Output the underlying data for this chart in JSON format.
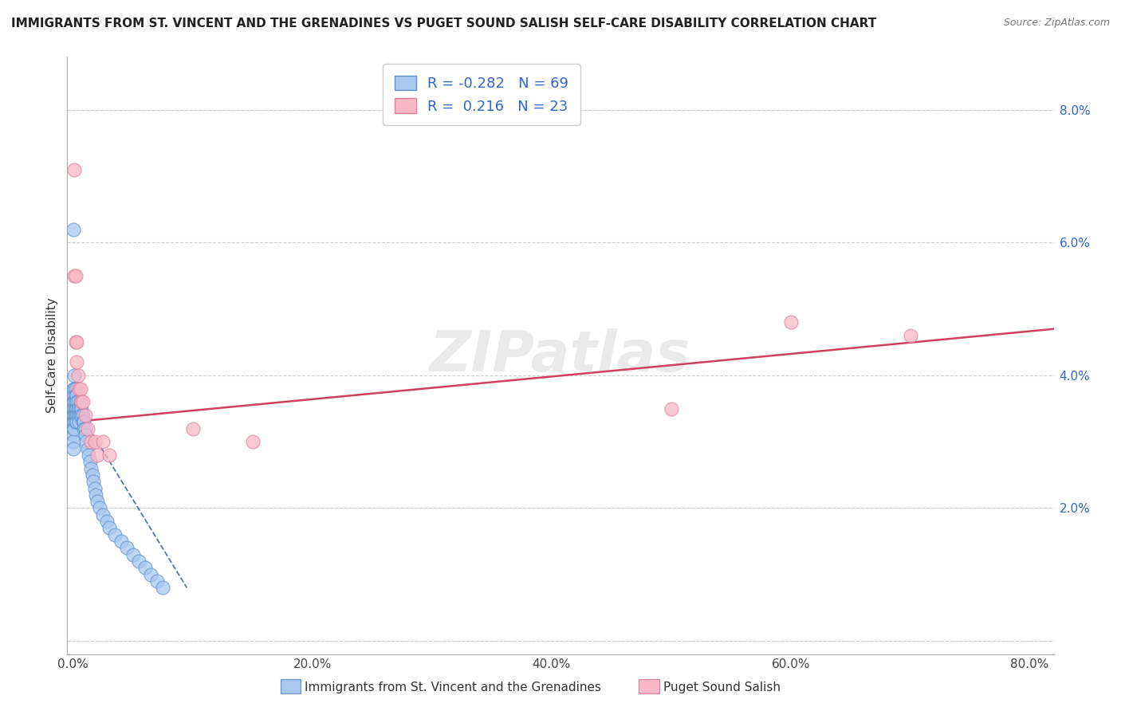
{
  "title": "IMMIGRANTS FROM ST. VINCENT AND THE GRENADINES VS PUGET SOUND SALISH SELF-CARE DISABILITY CORRELATION CHART",
  "source": "Source: ZipAtlas.com",
  "ylabel": "Self-Care Disability",
  "right_yticks": [
    0.0,
    0.02,
    0.04,
    0.06,
    0.08
  ],
  "right_yticklabels": [
    "",
    "2.0%",
    "4.0%",
    "6.0%",
    "8.0%"
  ],
  "xlim": [
    -0.005,
    0.82
  ],
  "ylim": [
    -0.002,
    0.088
  ],
  "xticks": [
    0.0,
    0.2,
    0.4,
    0.6,
    0.8
  ],
  "xticklabels": [
    "0.0%",
    "20.0%",
    "40.0%",
    "60.0%",
    "80.0%"
  ],
  "blue_R": -0.282,
  "blue_N": 69,
  "pink_R": 0.216,
  "pink_N": 23,
  "blue_color": "#A8C8F0",
  "pink_color": "#F8B8C8",
  "blue_edge": "#6090CC",
  "pink_edge": "#E08098",
  "trend_blue": "#3060A0",
  "trend_pink": "#D04060",
  "watermark": "ZIPatlas",
  "legend_label_blue": "Immigrants from St. Vincent and the Grenadines",
  "legend_label_pink": "Puget Sound Salish",
  "blue_x": [
    0.0,
    0.0,
    0.0,
    0.0,
    0.0,
    0.0,
    0.0,
    0.0,
    0.0,
    0.0,
    0.001,
    0.001,
    0.001,
    0.001,
    0.001,
    0.001,
    0.001,
    0.001,
    0.002,
    0.002,
    0.002,
    0.002,
    0.002,
    0.002,
    0.003,
    0.003,
    0.003,
    0.003,
    0.003,
    0.004,
    0.004,
    0.004,
    0.005,
    0.005,
    0.005,
    0.006,
    0.006,
    0.006,
    0.007,
    0.007,
    0.008,
    0.008,
    0.009,
    0.009,
    0.01,
    0.01,
    0.011,
    0.012,
    0.013,
    0.014,
    0.015,
    0.016,
    0.017,
    0.018,
    0.019,
    0.02,
    0.022,
    0.025,
    0.028,
    0.03,
    0.035,
    0.04,
    0.045,
    0.05,
    0.055,
    0.06,
    0.065,
    0.07,
    0.075
  ],
  "blue_y": [
    0.062,
    0.038,
    0.036,
    0.035,
    0.034,
    0.033,
    0.032,
    0.031,
    0.03,
    0.029,
    0.04,
    0.038,
    0.037,
    0.036,
    0.035,
    0.034,
    0.033,
    0.032,
    0.038,
    0.037,
    0.036,
    0.035,
    0.034,
    0.033,
    0.037,
    0.036,
    0.035,
    0.034,
    0.033,
    0.036,
    0.035,
    0.034,
    0.035,
    0.034,
    0.033,
    0.036,
    0.035,
    0.034,
    0.035,
    0.034,
    0.034,
    0.033,
    0.033,
    0.032,
    0.032,
    0.031,
    0.03,
    0.029,
    0.028,
    0.027,
    0.026,
    0.025,
    0.024,
    0.023,
    0.022,
    0.021,
    0.02,
    0.019,
    0.018,
    0.017,
    0.016,
    0.015,
    0.014,
    0.013,
    0.012,
    0.011,
    0.01,
    0.009,
    0.008
  ],
  "pink_x": [
    0.001,
    0.001,
    0.002,
    0.002,
    0.003,
    0.003,
    0.004,
    0.005,
    0.006,
    0.007,
    0.008,
    0.01,
    0.012,
    0.015,
    0.018,
    0.02,
    0.025,
    0.03,
    0.1,
    0.15,
    0.5,
    0.6,
    0.7
  ],
  "pink_y": [
    0.071,
    0.055,
    0.055,
    0.045,
    0.045,
    0.042,
    0.04,
    0.038,
    0.038,
    0.036,
    0.036,
    0.034,
    0.032,
    0.03,
    0.03,
    0.028,
    0.03,
    0.028,
    0.032,
    0.03,
    0.035,
    0.048,
    0.046
  ],
  "blue_trend_x": [
    0.0,
    0.1
  ],
  "blue_trend_y_start": 0.036,
  "blue_trend_y_end": 0.008,
  "pink_trend_x_start": 0.0,
  "pink_trend_x_end": 0.82,
  "pink_trend_y_start": 0.033,
  "pink_trend_y_end": 0.047
}
